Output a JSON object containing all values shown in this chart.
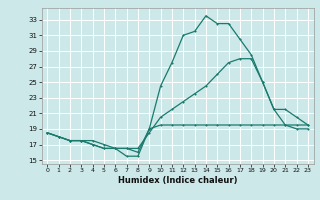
{
  "xlabel": "Humidex (Indice chaleur)",
  "bg_color": "#cce8e8",
  "grid_color": "#c0d8d8",
  "line_color": "#1a7a6e",
  "xlim": [
    -0.5,
    23.5
  ],
  "ylim": [
    14.5,
    34.5
  ],
  "yticks": [
    15,
    17,
    19,
    21,
    23,
    25,
    27,
    29,
    31,
    33
  ],
  "xticks": [
    0,
    1,
    2,
    3,
    4,
    5,
    6,
    7,
    8,
    9,
    10,
    11,
    12,
    13,
    14,
    15,
    16,
    17,
    18,
    19,
    20,
    21,
    22,
    23
  ],
  "series1_x": [
    0,
    1,
    2,
    3,
    4,
    5,
    6,
    7,
    8,
    9,
    10,
    11,
    12,
    13,
    14,
    15,
    16,
    17,
    18,
    19,
    20,
    21,
    22,
    23
  ],
  "series1_y": [
    18.5,
    18.0,
    17.5,
    17.5,
    17.5,
    17.0,
    16.5,
    16.5,
    16.0,
    19.0,
    19.5,
    19.5,
    19.5,
    19.5,
    19.5,
    19.5,
    19.5,
    19.5,
    19.5,
    19.5,
    19.5,
    19.5,
    19.5,
    19.5
  ],
  "series2_x": [
    0,
    1,
    2,
    3,
    4,
    5,
    6,
    7,
    8,
    9,
    10,
    11,
    12,
    13,
    14,
    15,
    16,
    17,
    18,
    19,
    20,
    21,
    22,
    23
  ],
  "series2_y": [
    18.5,
    18.0,
    17.5,
    17.5,
    17.0,
    16.5,
    16.5,
    15.5,
    15.5,
    19.0,
    24.5,
    27.5,
    31.0,
    31.5,
    33.5,
    32.5,
    32.5,
    30.5,
    28.5,
    25.0,
    21.5,
    19.5,
    19.0,
    19.0
  ],
  "series3_x": [
    0,
    1,
    2,
    3,
    4,
    5,
    6,
    7,
    8,
    9,
    10,
    11,
    12,
    13,
    14,
    15,
    16,
    17,
    18,
    19,
    20,
    21,
    22,
    23
  ],
  "series3_y": [
    18.5,
    18.0,
    17.5,
    17.5,
    17.0,
    16.5,
    16.5,
    16.5,
    16.5,
    18.5,
    20.5,
    21.5,
    22.5,
    23.5,
    24.5,
    26.0,
    27.5,
    28.0,
    28.0,
    25.0,
    21.5,
    21.5,
    20.5,
    19.5
  ]
}
